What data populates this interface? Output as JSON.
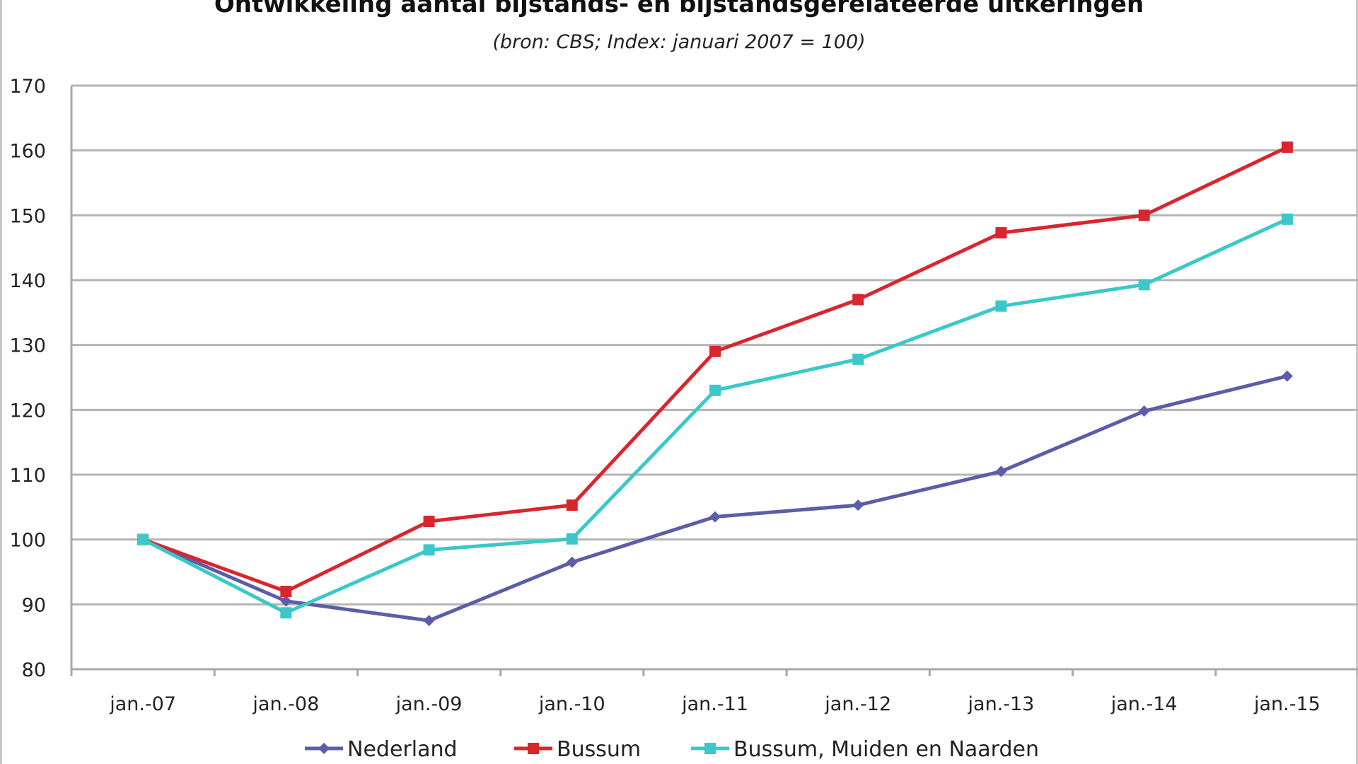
{
  "chart_data": {
    "type": "line",
    "title": "Ontwikkeling aantal bijstands- en bijstandsgerelateerde uitkeringen",
    "subtitle": "(bron: CBS; Index: januari 2007 = 100)",
    "xlabel": "",
    "ylabel": "",
    "categories": [
      "jan.-07",
      "jan.-08",
      "jan.-09",
      "jan.-10",
      "jan.-11",
      "jan.-12",
      "jan.-13",
      "jan.-14",
      "jan.-15"
    ],
    "ylim": [
      80,
      170
    ],
    "yticks": [
      80,
      90,
      100,
      110,
      120,
      130,
      140,
      150,
      160,
      170
    ],
    "grid": "horizontal",
    "legend": "bottom",
    "series": [
      {
        "name": "Nederland",
        "color": "#5b5ea6",
        "marker": "diamond",
        "values": [
          100,
          90.5,
          87.5,
          96.5,
          103.5,
          105.3,
          110.5,
          119.8,
          125.2
        ]
      },
      {
        "name": "Bussum",
        "color": "#d9262e",
        "marker": "square",
        "values": [
          100,
          92,
          102.8,
          105.3,
          129,
          137,
          147.3,
          150,
          160.5
        ]
      },
      {
        "name": "Bussum, Muiden en Naarden",
        "color": "#3cc8c8",
        "marker": "square",
        "values": [
          100,
          88.7,
          98.4,
          100.1,
          123,
          127.8,
          136,
          139.3,
          149.4
        ]
      }
    ]
  }
}
